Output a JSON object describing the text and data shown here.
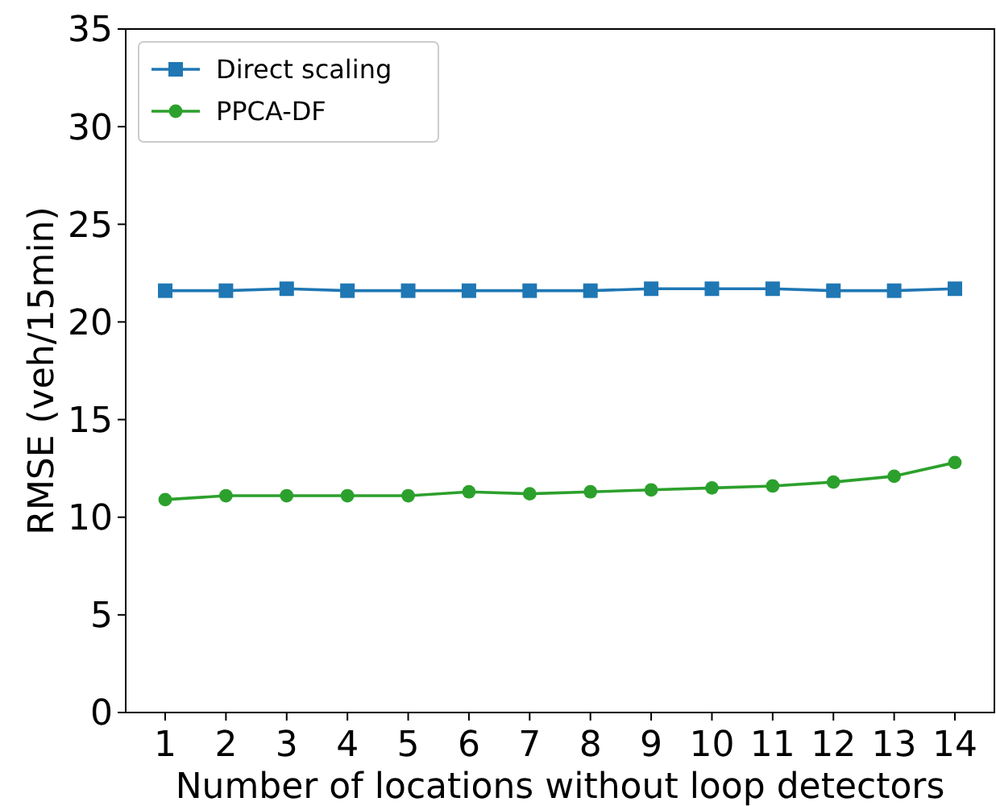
{
  "chart_data": {
    "type": "line",
    "xlabel": "Number of locations without loop detectors",
    "ylabel": "RMSE (veh/15min)",
    "x": [
      1,
      2,
      3,
      4,
      5,
      6,
      7,
      8,
      9,
      10,
      11,
      12,
      13,
      14
    ],
    "xlim": [
      0.35,
      14.65
    ],
    "xticks": [
      1,
      2,
      3,
      4,
      5,
      6,
      7,
      8,
      9,
      10,
      11,
      12,
      13,
      14
    ],
    "ylim": [
      0,
      35
    ],
    "yticks": [
      0,
      5,
      10,
      15,
      20,
      25,
      30,
      35
    ],
    "legend": "top left",
    "grid": false,
    "series": [
      {
        "name": "Direct scaling",
        "color": "#1f77b4",
        "marker": "square",
        "values": [
          21.6,
          21.6,
          21.7,
          21.6,
          21.6,
          21.6,
          21.6,
          21.6,
          21.7,
          21.7,
          21.7,
          21.6,
          21.6,
          21.7
        ]
      },
      {
        "name": "PPCA-DF",
        "color": "#2ca02c",
        "marker": "circle",
        "values": [
          10.9,
          11.1,
          11.1,
          11.1,
          11.1,
          11.3,
          11.2,
          11.3,
          11.4,
          11.5,
          11.6,
          11.8,
          12.1,
          12.8
        ]
      }
    ]
  }
}
